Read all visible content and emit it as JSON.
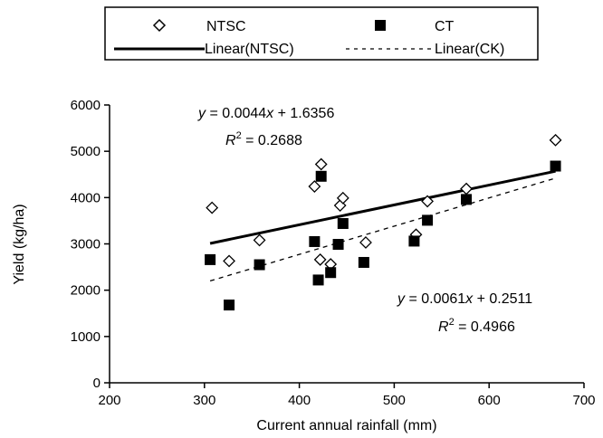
{
  "chart_data": {
    "type": "scatter",
    "xlabel": "Current annual rainfall (mm)",
    "ylabel": "Yield (kg/ha)",
    "xlim": [
      200,
      700
    ],
    "ylim": [
      0,
      6000
    ],
    "x_ticks": [
      200,
      300,
      400,
      500,
      600,
      700
    ],
    "y_ticks": [
      0,
      1000,
      2000,
      3000,
      4000,
      5000,
      6000
    ],
    "grid": false,
    "legend_position": "top",
    "series": [
      {
        "name": "NTSC",
        "marker": "open-diamond",
        "color": "#000000",
        "points": [
          {
            "x": 308,
            "y": 3780
          },
          {
            "x": 326,
            "y": 2630
          },
          {
            "x": 358,
            "y": 3080
          },
          {
            "x": 416,
            "y": 4240
          },
          {
            "x": 422,
            "y": 2660
          },
          {
            "x": 423,
            "y": 4720
          },
          {
            "x": 433,
            "y": 2560
          },
          {
            "x": 443,
            "y": 3830
          },
          {
            "x": 446,
            "y": 3990
          },
          {
            "x": 470,
            "y": 3030
          },
          {
            "x": 523,
            "y": 3200
          },
          {
            "x": 535,
            "y": 3920
          },
          {
            "x": 576,
            "y": 4190
          },
          {
            "x": 670,
            "y": 5240
          }
        ]
      },
      {
        "name": "CT",
        "marker": "filled-square",
        "color": "#000000",
        "points": [
          {
            "x": 306,
            "y": 2660
          },
          {
            "x": 326,
            "y": 1680
          },
          {
            "x": 358,
            "y": 2550
          },
          {
            "x": 416,
            "y": 3050
          },
          {
            "x": 420,
            "y": 2220
          },
          {
            "x": 423,
            "y": 4460
          },
          {
            "x": 433,
            "y": 2380
          },
          {
            "x": 441,
            "y": 2990
          },
          {
            "x": 446,
            "y": 3440
          },
          {
            "x": 468,
            "y": 2600
          },
          {
            "x": 521,
            "y": 3060
          },
          {
            "x": 535,
            "y": 3510
          },
          {
            "x": 576,
            "y": 3960
          },
          {
            "x": 670,
            "y": 4680
          }
        ]
      }
    ],
    "trendlines": [
      {
        "name": "Linear(NTSC)",
        "style": "solid",
        "points": [
          {
            "x": 306,
            "y": 3010
          },
          {
            "x": 670,
            "y": 4570
          }
        ],
        "equation": "y = 0.0044x + 1.6356",
        "r2": "R2 = 0.2688"
      },
      {
        "name": "Linear(CK)",
        "style": "dashed",
        "points": [
          {
            "x": 306,
            "y": 2200
          },
          {
            "x": 670,
            "y": 4420
          }
        ],
        "equation": "y = 0.0061x + 0.2511",
        "r2": "R2 = 0.4966"
      }
    ]
  },
  "legend": {
    "ntsc": "NTSC",
    "ct": "CT",
    "linear_ntsc": "Linear(NTSC)",
    "linear_ck": "Linear(CK)"
  },
  "annotations": {
    "eq1": {
      "y": "y",
      "eq": " = 0.0044",
      "x": "x",
      "rest": " + 1.6356",
      "r": "R",
      "sup": "2",
      "rval": " = 0.2688"
    },
    "eq2": {
      "y": "y",
      "eq": " = 0.0061",
      "x": "x",
      "rest": " + 0.2511",
      "r": "R",
      "sup": "2",
      "rval": " = 0.4966"
    }
  }
}
